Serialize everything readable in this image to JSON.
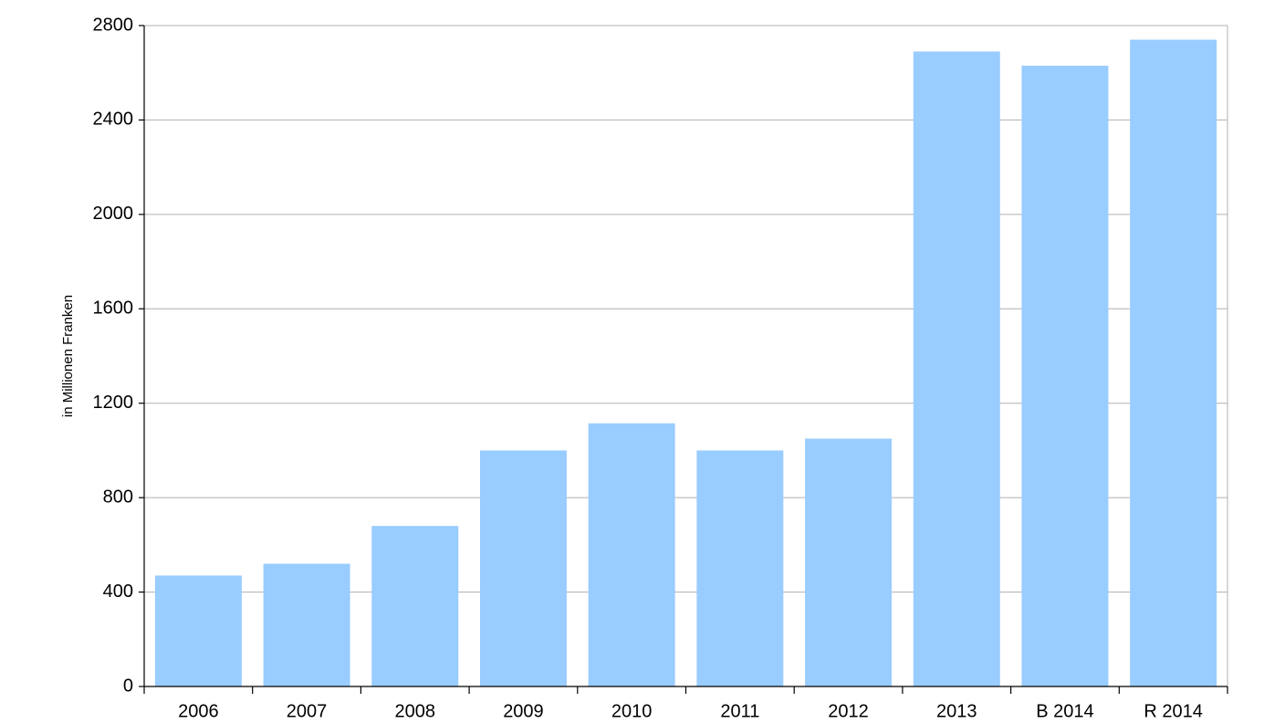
{
  "chart_data": {
    "type": "bar",
    "y_label": "in Millionen Franken",
    "categories": [
      "2006",
      "2007",
      "2008",
      "2009",
      "2010",
      "2011",
      "2012",
      "2013",
      "B 2014",
      "R 2014"
    ],
    "values": [
      470,
      520,
      680,
      1000,
      1115,
      1000,
      1050,
      2690,
      2630,
      2740
    ],
    "color": "#99ccff",
    "ylim": [
      0,
      2800
    ],
    "yticks": [
      0,
      400,
      800,
      1200,
      1600,
      2000,
      2400,
      2800
    ],
    "grid": true
  }
}
